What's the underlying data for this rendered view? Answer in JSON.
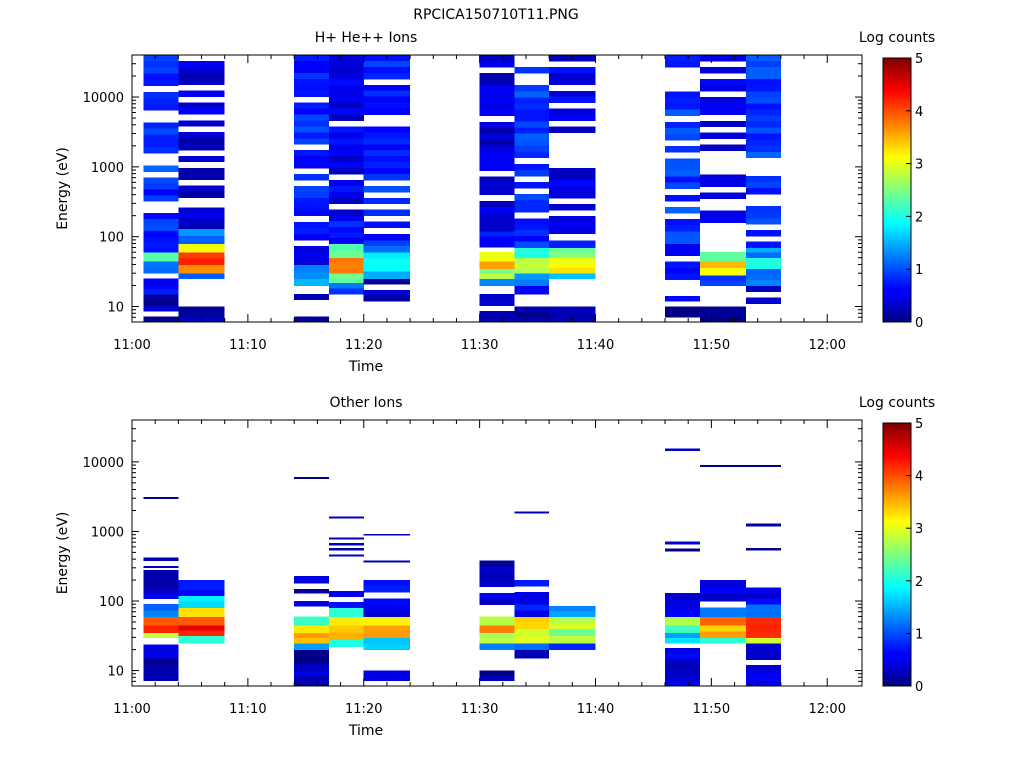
{
  "figure": {
    "title": "RPCICA150710T11.PNG"
  },
  "chart_data": [
    {
      "type": "heatmap",
      "title": "H+ He++ Ions",
      "xlabel": "Time",
      "ylabel": "Energy (eV)",
      "xlim": [
        "11:00",
        "12:03"
      ],
      "ylim": [
        6,
        40000
      ],
      "y_scale": "log",
      "x_ticks": [
        "11:00",
        "11:10",
        "11:20",
        "11:30",
        "11:40",
        "11:50",
        "12:00"
      ],
      "y_ticks": [
        "10",
        "100",
        "1000",
        "10000"
      ],
      "colorbar": {
        "label": "Log counts",
        "min": 0,
        "max": 5,
        "ticks": [
          "0",
          "1",
          "2",
          "3",
          "4",
          "5"
        ]
      },
      "columns": [
        {
          "start": "11:01",
          "end": "11:04",
          "seed": 11,
          "bands": [
            [
              6,
              15,
              0.25
            ],
            [
              15,
              30,
              0.7
            ],
            [
              30,
              45,
              1.2
            ],
            [
              45,
              60,
              2.2
            ],
            [
              60,
              100,
              0.9
            ],
            [
              100,
              700,
              0.8
            ],
            [
              700,
              40000,
              0.9
            ]
          ]
        },
        {
          "start": "11:04",
          "end": "11:08",
          "seed": 23,
          "bands": [
            [
              6,
              10,
              0.15
            ],
            [
              25,
              30,
              1.0
            ],
            [
              30,
              40,
              3.5
            ],
            [
              40,
              60,
              4.1
            ],
            [
              60,
              80,
              3.2
            ],
            [
              80,
              130,
              1.3
            ],
            [
              130,
              260,
              0.4
            ],
            [
              300,
              40000,
              0.4
            ]
          ]
        },
        {
          "start": "11:14",
          "end": "11:17",
          "seed": 37,
          "bands": [
            [
              6,
              15,
              0.2
            ],
            [
              20,
              25,
              1.6
            ],
            [
              25,
              40,
              1.2
            ],
            [
              40,
              200,
              0.6
            ],
            [
              200,
              40000,
              0.8
            ]
          ]
        },
        {
          "start": "11:17",
          "end": "11:20",
          "seed": 41,
          "bands": [
            [
              15,
              22,
              1.0
            ],
            [
              22,
              30,
              2.5
            ],
            [
              30,
              50,
              3.6
            ],
            [
              50,
              80,
              2.2
            ],
            [
              80,
              200,
              0.8
            ],
            [
              200,
              40000,
              0.5
            ]
          ]
        },
        {
          "start": "11:20",
          "end": "11:24",
          "seed": 53,
          "bands": [
            [
              10,
              25,
              0.3
            ],
            [
              25,
              32,
              1.4
            ],
            [
              32,
              60,
              2.0
            ],
            [
              60,
              90,
              1.1
            ],
            [
              90,
              200,
              0.5
            ],
            [
              200,
              40000,
              0.8
            ]
          ]
        },
        {
          "start": "11:30",
          "end": "11:33",
          "seed": 61,
          "bands": [
            [
              6,
              15,
              0.2
            ],
            [
              20,
              25,
              1.3
            ],
            [
              25,
              35,
              2.6
            ],
            [
              35,
              45,
              3.8
            ],
            [
              45,
              60,
              3.0
            ],
            [
              60,
              120,
              0.7
            ],
            [
              120,
              40000,
              0.4
            ]
          ]
        },
        {
          "start": "11:33",
          "end": "11:36",
          "seed": 71,
          "bands": [
            [
              6,
              10,
              0.15
            ],
            [
              15,
              20,
              0.5
            ],
            [
              20,
              30,
              1.3
            ],
            [
              30,
              50,
              2.8
            ],
            [
              50,
              70,
              2.0
            ],
            [
              70,
              150,
              0.8
            ],
            [
              150,
              40000,
              0.9
            ]
          ]
        },
        {
          "start": "11:36",
          "end": "11:40",
          "seed": 83,
          "bands": [
            [
              6,
              10,
              0.15
            ],
            [
              25,
              30,
              1.5
            ],
            [
              30,
              50,
              3.1
            ],
            [
              50,
              70,
              2.5
            ],
            [
              70,
              110,
              0.6
            ],
            [
              110,
              40000,
              0.5
            ]
          ]
        },
        {
          "start": "11:46",
          "end": "11:49",
          "seed": 97,
          "bands": [
            [
              6,
              10,
              0.15
            ],
            [
              10,
              20,
              0.5
            ],
            [
              20,
              80,
              0.7
            ],
            [
              80,
              40000,
              0.9
            ]
          ]
        },
        {
          "start": "11:49",
          "end": "11:53",
          "seed": 101,
          "bands": [
            [
              6,
              10,
              0.15
            ],
            [
              20,
              28,
              1.0
            ],
            [
              28,
              45,
              3.3
            ],
            [
              45,
              60,
              2.3
            ],
            [
              60,
              80,
              0.7
            ],
            [
              160,
              40000,
              0.5
            ]
          ]
        },
        {
          "start": "11:53",
          "end": "11:56",
          "seed": 113,
          "bands": [
            [
              6,
              20,
              0.3
            ],
            [
              20,
              35,
              1.3
            ],
            [
              35,
              50,
              2.2
            ],
            [
              50,
              70,
              1.3
            ],
            [
              70,
              150,
              0.8
            ],
            [
              150,
              40000,
              0.9
            ]
          ]
        }
      ]
    },
    {
      "type": "heatmap",
      "title": "Other Ions",
      "xlabel": "Time",
      "ylabel": "Energy (eV)",
      "xlim": [
        "11:00",
        "12:03"
      ],
      "ylim": [
        6,
        40000
      ],
      "y_scale": "log",
      "x_ticks": [
        "11:00",
        "11:10",
        "11:20",
        "11:30",
        "11:40",
        "11:50",
        "12:00"
      ],
      "y_ticks": [
        "10",
        "100",
        "1000",
        "10000"
      ],
      "colorbar": {
        "label": "Log counts",
        "min": 0,
        "max": 5,
        "ticks": [
          "0",
          "1",
          "2",
          "3",
          "4",
          "5"
        ]
      },
      "columns": [
        {
          "start": "11:01",
          "end": "11:04",
          "seed": 131,
          "bands": [
            [
              6,
              15,
              0.2
            ],
            [
              15,
              30,
              0.5
            ],
            [
              30,
              35,
              2.8
            ],
            [
              35,
              45,
              4.3
            ],
            [
              45,
              60,
              3.8
            ],
            [
              60,
              90,
              1.2
            ],
            [
              90,
              280,
              0.4
            ],
            [
              300,
              320,
              0.15
            ],
            [
              380,
              420,
              0.2
            ],
            [
              2950,
              3150,
              0.2
            ]
          ]
        },
        {
          "start": "11:04",
          "end": "11:08",
          "seed": 137,
          "bands": [
            [
              25,
              32,
              2.0
            ],
            [
              32,
              45,
              4.4
            ],
            [
              45,
              60,
              4.1
            ],
            [
              60,
              80,
              3.3
            ],
            [
              80,
              120,
              1.8
            ],
            [
              120,
              200,
              0.8
            ]
          ]
        },
        {
          "start": "11:14",
          "end": "11:17",
          "seed": 149,
          "bands": [
            [
              6,
              10,
              0.4
            ],
            [
              10,
              20,
              0.2
            ],
            [
              20,
              25,
              1.3
            ],
            [
              25,
              35,
              3.4
            ],
            [
              35,
              45,
              3.1
            ],
            [
              45,
              60,
              2.2
            ],
            [
              85,
              100,
              0.3
            ],
            [
              130,
              150,
              0.3
            ],
            [
              180,
              230,
              0.3
            ],
            [
              5700,
              6100,
              0.2
            ]
          ]
        },
        {
          "start": "11:17",
          "end": "11:20",
          "seed": 151,
          "bands": [
            [
              22,
              28,
              1.8
            ],
            [
              28,
              45,
              3.5
            ],
            [
              45,
              60,
              3.0
            ],
            [
              60,
              80,
              2.2
            ],
            [
              80,
              140,
              0.7
            ],
            [
              440,
              470,
              0.2
            ],
            [
              540,
              580,
              0.2
            ],
            [
              640,
              680,
              0.2
            ],
            [
              770,
              820,
              0.2
            ],
            [
              1550,
              1650,
              0.2
            ]
          ]
        },
        {
          "start": "11:20",
          "end": "11:24",
          "seed": 157,
          "bands": [
            [
              6,
              10,
              0.5
            ],
            [
              15,
              20,
              0.2
            ],
            [
              20,
              30,
              1.6
            ],
            [
              30,
              45,
              3.7
            ],
            [
              45,
              60,
              3.1
            ],
            [
              60,
              200,
              0.6
            ],
            [
              360,
              380,
              0.2
            ],
            [
              880,
              920,
              0.2
            ]
          ]
        },
        {
          "start": "11:30",
          "end": "11:33",
          "seed": 163,
          "bands": [
            [
              6,
              10,
              0.2
            ],
            [
              20,
              25,
              1.2
            ],
            [
              25,
              35,
              2.7
            ],
            [
              35,
              45,
              3.6
            ],
            [
              45,
              60,
              2.9
            ],
            [
              60,
              130,
              0.5
            ],
            [
              160,
              200,
              0.3
            ],
            [
              200,
              380,
              0.3
            ]
          ]
        },
        {
          "start": "11:33",
          "end": "11:36",
          "seed": 167,
          "bands": [
            [
              15,
              20,
              0.3
            ],
            [
              20,
              25,
              1.0
            ],
            [
              25,
              40,
              2.9
            ],
            [
              40,
              60,
              3.5
            ],
            [
              60,
              200,
              0.6
            ],
            [
              1850,
              1950,
              0.2
            ]
          ]
        },
        {
          "start": "11:36",
          "end": "11:40",
          "seed": 173,
          "bands": [
            [
              20,
              25,
              0.6
            ],
            [
              25,
              40,
              2.6
            ],
            [
              40,
              60,
              2.9
            ],
            [
              60,
              85,
              1.4
            ]
          ]
        },
        {
          "start": "11:46",
          "end": "11:49",
          "seed": 179,
          "bands": [
            [
              6,
              15,
              0.35
            ],
            [
              15,
              25,
              0.5
            ],
            [
              25,
              35,
              1.6
            ],
            [
              35,
              45,
              2.3
            ],
            [
              45,
              60,
              2.8
            ],
            [
              60,
              190,
              0.5
            ],
            [
              520,
              570,
              0.2
            ],
            [
              660,
              720,
              0.2
            ],
            [
              14500,
              15500,
              0.2
            ]
          ]
        },
        {
          "start": "11:49",
          "end": "11:53",
          "seed": 181,
          "bands": [
            [
              25,
              30,
              2.0
            ],
            [
              30,
              45,
              3.4
            ],
            [
              45,
              60,
              3.9
            ],
            [
              60,
              80,
              1.0
            ],
            [
              100,
              160,
              0.5
            ],
            [
              160,
              200,
              0.3
            ],
            [
              8500,
              9000,
              0.2
            ]
          ]
        },
        {
          "start": "11:53",
          "end": "11:56",
          "seed": 191,
          "bands": [
            [
              6,
              10,
              0.5
            ],
            [
              10,
              25,
              0.35
            ],
            [
              25,
              30,
              2.7
            ],
            [
              30,
              60,
              4.2
            ],
            [
              60,
              90,
              1.2
            ],
            [
              90,
              270,
              0.5
            ],
            [
              540,
              580,
              0.2
            ],
            [
              1200,
              1300,
              0.2
            ],
            [
              8500,
              9000,
              0.2
            ]
          ]
        }
      ]
    }
  ]
}
